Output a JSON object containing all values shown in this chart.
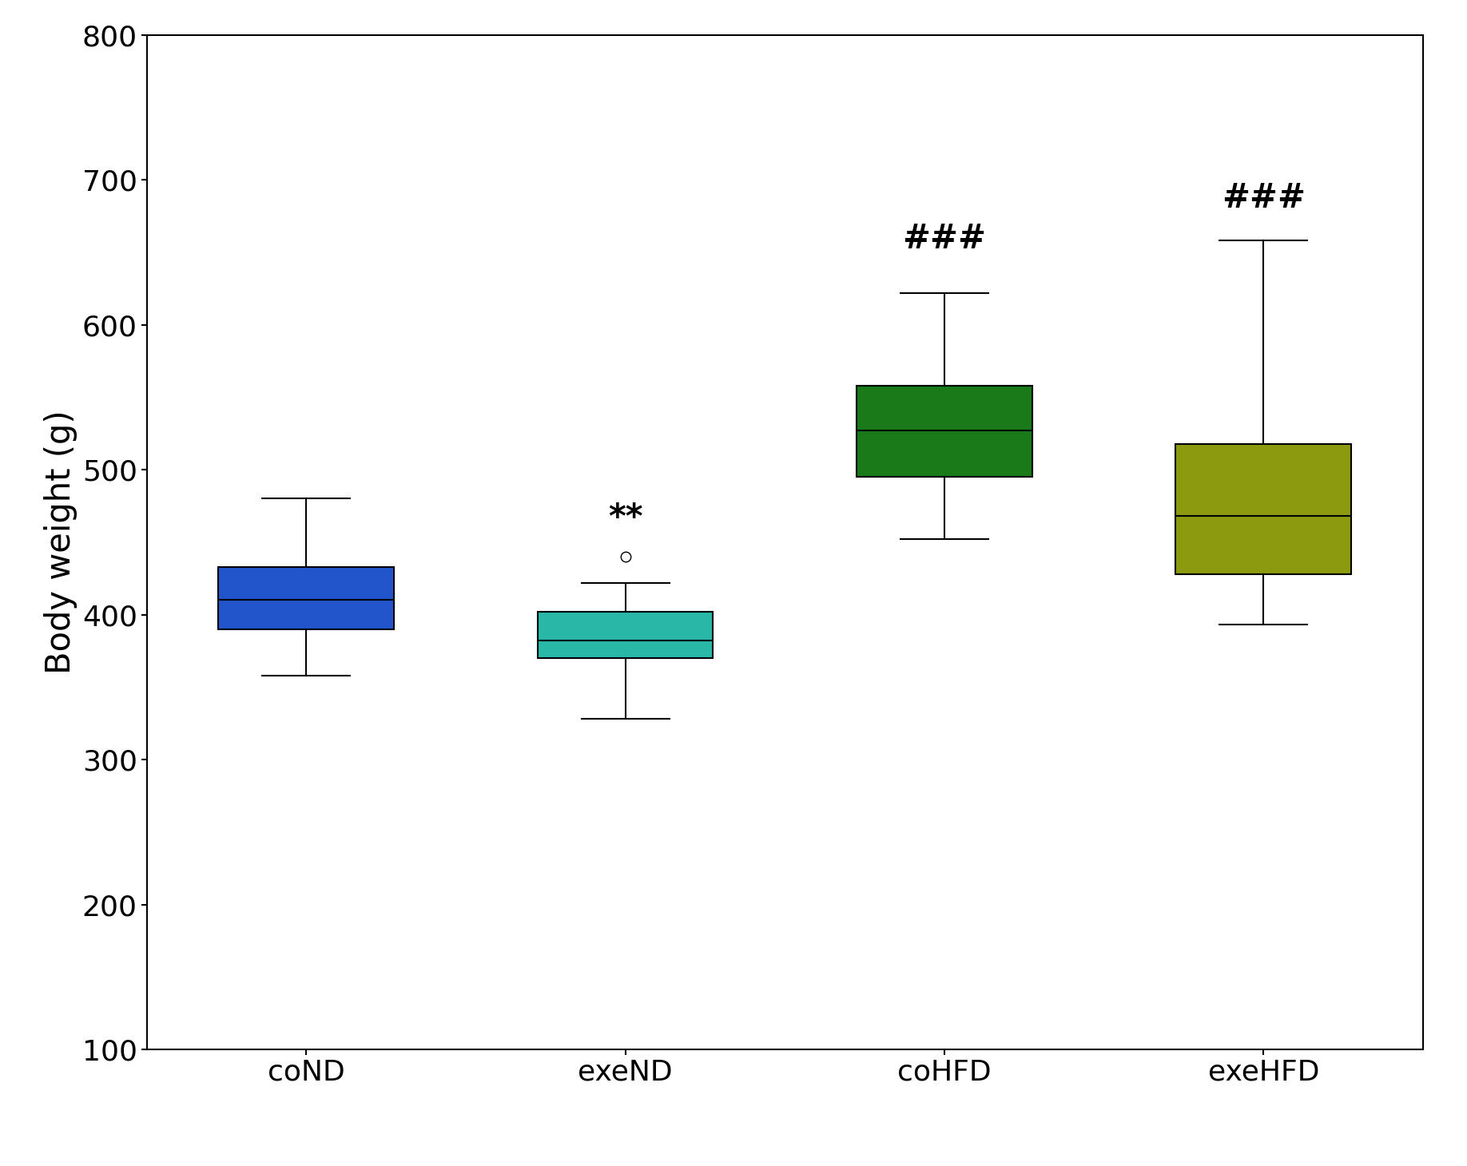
{
  "categories": [
    "coND",
    "exeND",
    "coHFD",
    "exeHFD"
  ],
  "colors": [
    "#2255cc",
    "#29b8a8",
    "#1a7a1a",
    "#8c9a10"
  ],
  "box_data": {
    "coND": {
      "whislo": 358,
      "q1": 390,
      "med": 410,
      "q3": 433,
      "whishi": 480,
      "fliers": []
    },
    "exeND": {
      "whislo": 328,
      "q1": 370,
      "med": 382,
      "q3": 402,
      "whishi": 422,
      "fliers": [
        440
      ]
    },
    "coHFD": {
      "whislo": 452,
      "q1": 495,
      "med": 527,
      "q3": 558,
      "whishi": 622,
      "fliers": []
    },
    "exeHFD": {
      "whislo": 393,
      "q1": 428,
      "med": 468,
      "q3": 518,
      "whishi": 658,
      "fliers": []
    }
  },
  "annotations": {
    "exeND": {
      "text": "**",
      "y": 455,
      "fontsize": 30
    },
    "coHFD": {
      "text": "###",
      "y": 648,
      "fontsize": 30
    },
    "exeHFD": {
      "text": "###",
      "y": 676,
      "fontsize": 30
    }
  },
  "ylabel": "Body weight (g)",
  "ylim": [
    100,
    800
  ],
  "yticks": [
    100,
    200,
    300,
    400,
    500,
    600,
    700,
    800
  ],
  "background_color": "#ffffff",
  "tick_fontsize": 26,
  "label_fontsize": 30,
  "box_width": 0.55,
  "linewidth": 1.5,
  "figsize": [
    18.36,
    14.6
  ],
  "dpi": 100
}
